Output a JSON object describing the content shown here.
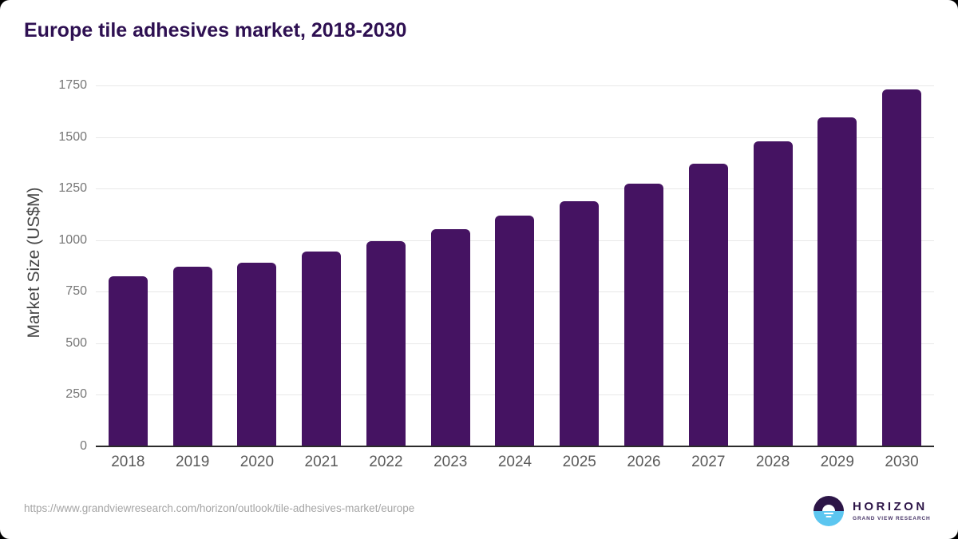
{
  "header": {
    "title": "Europe tile adhesives market, 2018-2030"
  },
  "chart_data": {
    "type": "bar",
    "title": "Europe tile adhesives market, 2018-2030",
    "categories": [
      "2018",
      "2019",
      "2020",
      "2021",
      "2022",
      "2023",
      "2024",
      "2025",
      "2026",
      "2027",
      "2028",
      "2029",
      "2030"
    ],
    "values": [
      825,
      870,
      890,
      945,
      995,
      1055,
      1120,
      1190,
      1275,
      1370,
      1480,
      1595,
      1730
    ],
    "xlabel": "",
    "ylabel": "Market Size (US$M)",
    "ylim": [
      0,
      1750
    ],
    "yticks": [
      0,
      250,
      500,
      750,
      1000,
      1250,
      1500,
      1750
    ],
    "grid": true,
    "legend": "none",
    "bar_color": "#451362"
  },
  "footer": {
    "source_url": "https://www.grandviewresearch.com/horizon/outlook/tile-adhesives-market/europe",
    "logo": {
      "name": "HORIZON",
      "subtitle": "GRAND VIEW RESEARCH",
      "icon": "horizon-sun-over-water-icon",
      "colors": {
        "purple": "#2c1547",
        "blue": "#5cc6f0"
      }
    }
  },
  "colors": {
    "background": "#ffffff",
    "title_text": "#2e1052",
    "bar": "#451362",
    "gridline": "#e8e8e8",
    "axis_line": "#2b2b2b",
    "y_tick_text": "#767676",
    "x_tick_text": "#5a5a5a",
    "source_text": "#a5a5a5"
  }
}
